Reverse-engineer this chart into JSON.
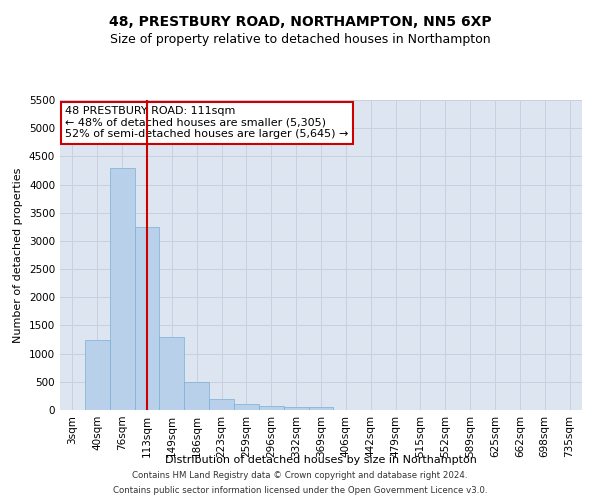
{
  "title": "48, PRESTBURY ROAD, NORTHAMPTON, NN5 6XP",
  "subtitle": "Size of property relative to detached houses in Northampton",
  "xlabel": "Distribution of detached houses by size in Northampton",
  "ylabel": "Number of detached properties",
  "footer1": "Contains HM Land Registry data © Crown copyright and database right 2024.",
  "footer2": "Contains public sector information licensed under the Open Government Licence v3.0.",
  "categories": [
    "3sqm",
    "40sqm",
    "76sqm",
    "113sqm",
    "149sqm",
    "186sqm",
    "223sqm",
    "259sqm",
    "296sqm",
    "332sqm",
    "369sqm",
    "406sqm",
    "442sqm",
    "479sqm",
    "515sqm",
    "552sqm",
    "589sqm",
    "625sqm",
    "662sqm",
    "698sqm",
    "735sqm"
  ],
  "values": [
    0,
    1250,
    4300,
    3250,
    1300,
    500,
    200,
    100,
    75,
    50,
    50,
    0,
    0,
    0,
    0,
    0,
    0,
    0,
    0,
    0,
    0
  ],
  "bar_color": "#b8d0ea",
  "bar_edge_color": "#7aafd4",
  "vline_index": 3,
  "vline_color": "#cc0000",
  "annotation_text": "48 PRESTBURY ROAD: 111sqm\n← 48% of detached houses are smaller (5,305)\n52% of semi-detached houses are larger (5,645) →",
  "annotation_box_color": "#cc0000",
  "ylim": [
    0,
    5500
  ],
  "grid_color": "#c8d0e0",
  "plot_bg_color": "#dde6f0",
  "title_fontsize": 10,
  "subtitle_fontsize": 9,
  "axis_label_fontsize": 8,
  "tick_fontsize": 7.5,
  "annotation_fontsize": 8
}
